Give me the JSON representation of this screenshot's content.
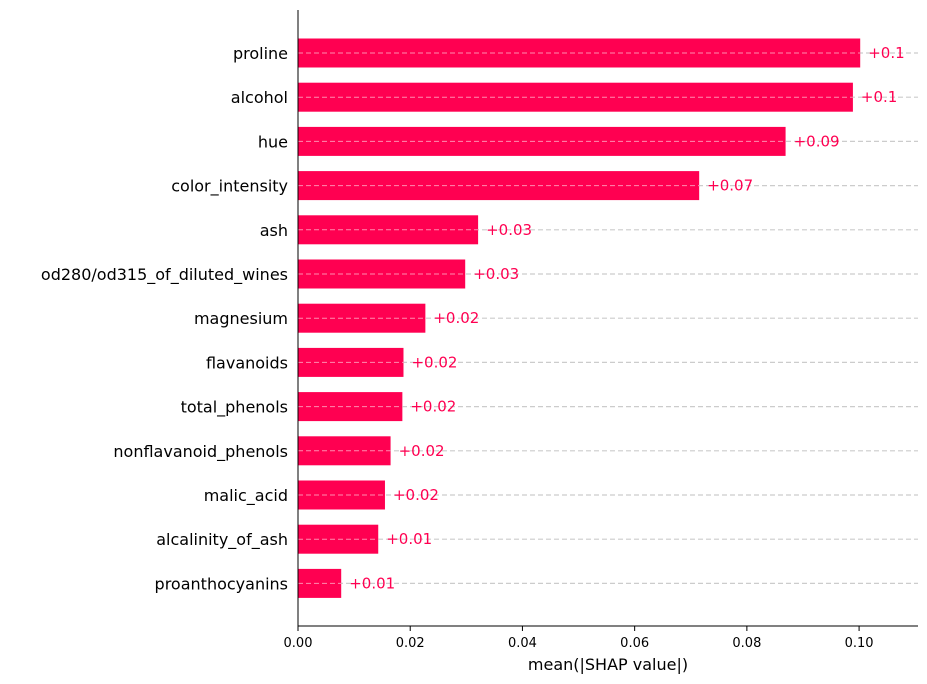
{
  "chart_data": {
    "type": "bar",
    "orientation": "horizontal",
    "categories": [
      "proline",
      "alcohol",
      "hue",
      "color_intensity",
      "ash",
      "od280/od315_of_diluted_wines",
      "magnesium",
      "flavanoids",
      "total_phenols",
      "nonflavanoid_phenols",
      "malic_acid",
      "alcalinity_of_ash",
      "proanthocyanins"
    ],
    "values": [
      0.1002,
      0.0989,
      0.0869,
      0.0715,
      0.0321,
      0.0298,
      0.0227,
      0.0188,
      0.0186,
      0.0165,
      0.0155,
      0.0143,
      0.0077
    ],
    "value_labels": [
      "+0.1",
      "+0.1",
      "+0.09",
      "+0.07",
      "+0.03",
      "+0.03",
      "+0.02",
      "+0.02",
      "+0.02",
      "+0.02",
      "+0.02",
      "+0.01",
      "+0.01"
    ],
    "xlabel": "mean(|SHAP value|)",
    "ylabel": "",
    "title": "",
    "xlim": [
      0,
      0.1105
    ],
    "xticks": [
      0.0,
      0.02,
      0.04,
      0.06,
      0.08,
      0.1
    ],
    "xtick_labels": [
      "0.00",
      "0.02",
      "0.04",
      "0.06",
      "0.08",
      "0.10"
    ],
    "grid": "dashed horizontal lines per bar",
    "legend": "none",
    "colors": {
      "bar": "#ff0051",
      "value_label": "#ff0051",
      "grid": "#cccccc",
      "axis": "#000000"
    }
  }
}
